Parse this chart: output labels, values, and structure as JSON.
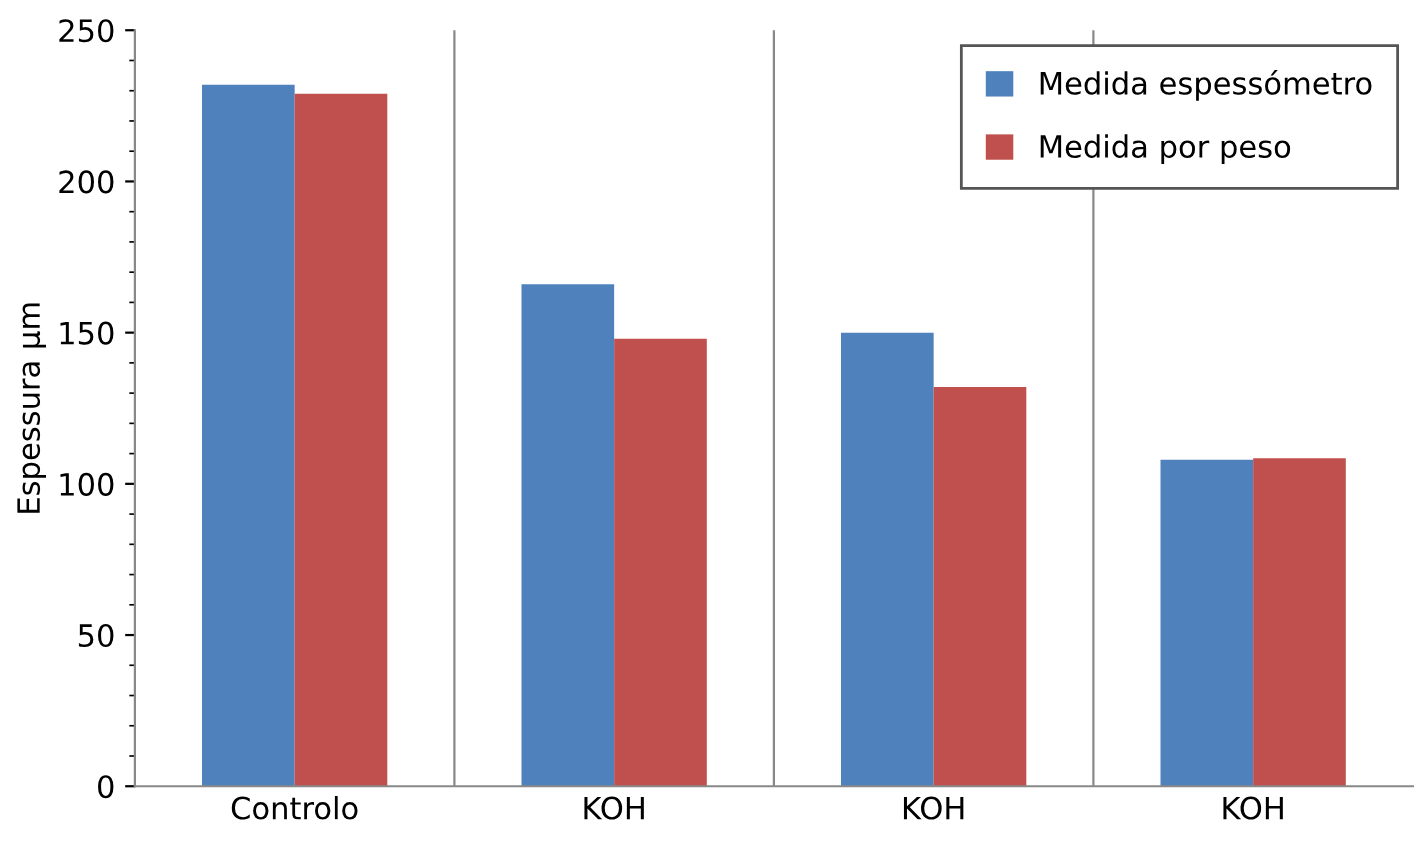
{
  "chart_data": {
    "type": "bar",
    "ylabel": "Espessura µm",
    "categories": [
      "Controlo",
      "KOH",
      "KOH",
      "KOH"
    ],
    "series": [
      {
        "name": "Medida espessómetro",
        "color": "#4f81bd",
        "values": [
          232,
          166,
          150,
          108
        ]
      },
      {
        "name": "Medida por peso",
        "color": "#c0504d",
        "values": [
          229,
          148,
          132,
          108.5
        ]
      }
    ],
    "ylim": [
      0,
      250
    ],
    "yticks": [
      0,
      50,
      100,
      150,
      200,
      250
    ],
    "grid": "x",
    "legend": "top right"
  }
}
